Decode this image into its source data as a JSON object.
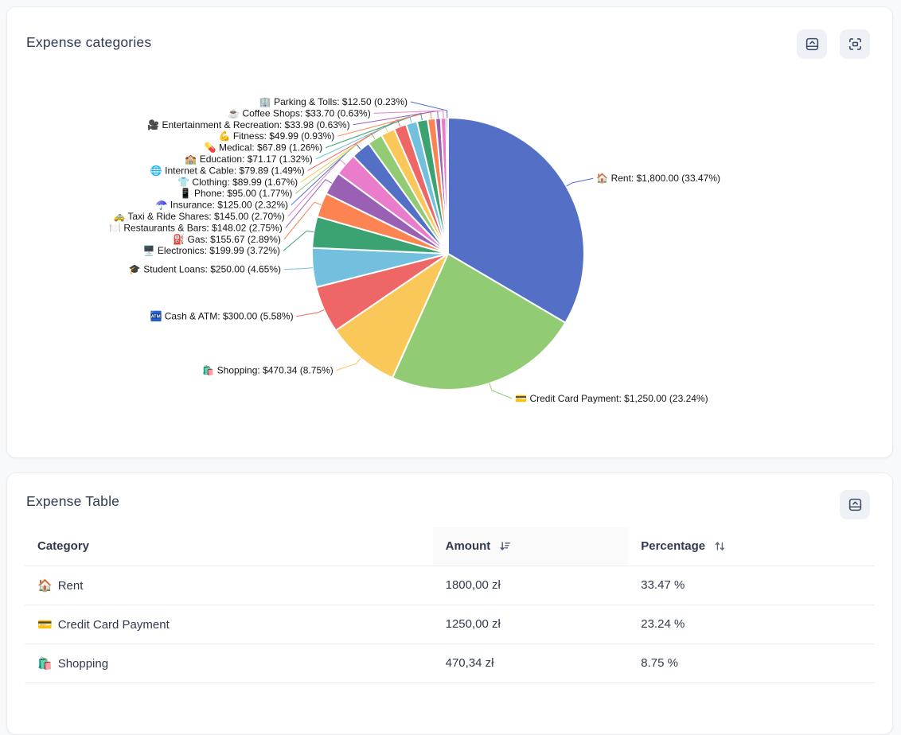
{
  "chart_card": {
    "title": "Expense categories",
    "collapse_button": "collapse",
    "fullscreen_button": "fullscreen"
  },
  "chart_data": {
    "type": "pie",
    "title": "Expense categories",
    "start_angle_deg": 0,
    "direction": "clockwise-from-top",
    "label_format": "{emoji} {label}: {amount} ({pct}%)",
    "palette": [
      "#5470c6",
      "#91cc75",
      "#fac858",
      "#ee6666",
      "#73c0de",
      "#3ba272",
      "#fc8452",
      "#9a60b4",
      "#ea7ccc"
    ],
    "slices": [
      {
        "label": "Rent",
        "emoji": "🏠",
        "amount_label": "$1,800.00",
        "value": 1800.0,
        "pct": 33.47
      },
      {
        "label": "Credit Card Payment",
        "emoji": "💳",
        "amount_label": "$1,250.00",
        "value": 1250.0,
        "pct": 23.24
      },
      {
        "label": "Shopping",
        "emoji": "🛍️",
        "amount_label": "$470.34",
        "value": 470.34,
        "pct": 8.75
      },
      {
        "label": "Cash & ATM",
        "emoji": "🏧",
        "amount_label": "$300.00",
        "value": 300.0,
        "pct": 5.58
      },
      {
        "label": "Student Loans",
        "emoji": "🎓",
        "amount_label": "$250.00",
        "value": 250.0,
        "pct": 4.65
      },
      {
        "label": "Electronics",
        "emoji": "🖥️",
        "amount_label": "$199.99",
        "value": 199.99,
        "pct": 3.72
      },
      {
        "label": "Gas",
        "emoji": "⛽",
        "amount_label": "$155.67",
        "value": 155.67,
        "pct": 2.89
      },
      {
        "label": "Restaurants & Bars",
        "emoji": "🍽️",
        "amount_label": "$148.02",
        "value": 148.02,
        "pct": 2.75
      },
      {
        "label": "Taxi & Ride Shares",
        "emoji": "🚕",
        "amount_label": "$145.00",
        "value": 145.0,
        "pct": 2.7
      },
      {
        "label": "Insurance",
        "emoji": "☂️",
        "amount_label": "$125.00",
        "value": 125.0,
        "pct": 2.32
      },
      {
        "label": "Phone",
        "emoji": "📱",
        "amount_label": "$95.00",
        "value": 95.0,
        "pct": 1.77
      },
      {
        "label": "Clothing",
        "emoji": "👕",
        "amount_label": "$89.99",
        "value": 89.99,
        "pct": 1.67
      },
      {
        "label": "Internet & Cable",
        "emoji": "🌐",
        "amount_label": "$79.89",
        "value": 79.89,
        "pct": 1.49
      },
      {
        "label": "Education",
        "emoji": "🏫",
        "amount_label": "$71.17",
        "value": 71.17,
        "pct": 1.32
      },
      {
        "label": "Medical",
        "emoji": "💊",
        "amount_label": "$67.89",
        "value": 67.89,
        "pct": 1.26
      },
      {
        "label": "Fitness",
        "emoji": "💪",
        "amount_label": "$49.99",
        "value": 49.99,
        "pct": 0.93
      },
      {
        "label": "Entertainment & Recreation",
        "emoji": "🎥",
        "amount_label": "$33.98",
        "value": 33.98,
        "pct": 0.63
      },
      {
        "label": "Coffee Shops",
        "emoji": "☕",
        "amount_label": "$33.70",
        "value": 33.7,
        "pct": 0.63
      },
      {
        "label": "Parking & Tolls",
        "emoji": "🏢",
        "amount_label": "$12.50",
        "value": 12.5,
        "pct": 0.23
      }
    ]
  },
  "table_card": {
    "title": "Expense Table",
    "collapse_button": "collapse",
    "columns": [
      {
        "label": "Category",
        "sort": "none"
      },
      {
        "label": "Amount",
        "sort": "desc"
      },
      {
        "label": "Percentage",
        "sort": "toggle"
      }
    ],
    "rows": [
      {
        "emoji": "🏠",
        "category": "Rent",
        "amount": "1800,00 zł",
        "percentage": "33.47 %"
      },
      {
        "emoji": "💳",
        "category": "Credit Card Payment",
        "amount": "1250,00 zł",
        "percentage": "23.24 %"
      },
      {
        "emoji": "🛍️",
        "category": "Shopping",
        "amount": "470,34 zł",
        "percentage": "8.75 %"
      }
    ]
  }
}
